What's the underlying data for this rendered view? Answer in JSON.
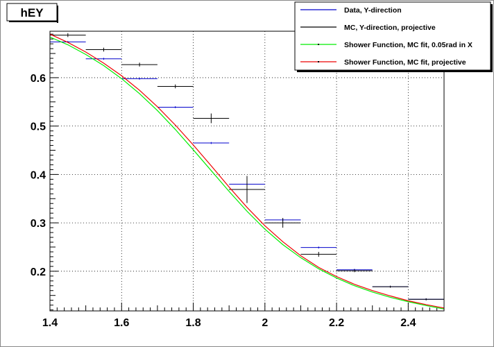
{
  "chart_data": {
    "type": "line",
    "title": "hEY",
    "xlabel": "",
    "ylabel": "",
    "xlim": [
      1.4,
      2.5
    ],
    "ylim": [
      0.118,
      0.696
    ],
    "grid": true,
    "legend_position": "top-right",
    "x_ticks": [
      "1.4",
      "1.6",
      "1.8",
      "2",
      "2.2",
      "2.4"
    ],
    "x_tick_values": [
      1.4,
      1.6,
      1.8,
      2.0,
      2.2,
      2.4
    ],
    "y_ticks": [
      "0.2",
      "0.3",
      "0.4",
      "0.5",
      "0.6"
    ],
    "y_tick_values": [
      0.2,
      0.3,
      0.4,
      0.5,
      0.6
    ],
    "series": [
      {
        "name": "Data, Y-direction",
        "color": "#0000cc",
        "style": "histogram-points",
        "x": [
          1.45,
          1.55,
          1.65,
          1.75,
          1.85,
          1.95,
          2.05,
          2.15,
          2.25,
          2.35,
          2.45
        ],
        "xerr": 0.05,
        "y": [
          0.674,
          0.639,
          0.598,
          0.539,
          0.465,
          0.38,
          0.306,
          0.249,
          0.203,
          0.168,
          0.142
        ],
        "yerr": [
          0.002,
          0.002,
          0.002,
          0.002,
          0.002,
          0.003,
          0.003,
          0.002,
          0.002,
          0.002,
          0.002
        ]
      },
      {
        "name": "MC, Y-direction, projective",
        "color": "#000000",
        "style": "histogram-points",
        "x": [
          1.45,
          1.55,
          1.65,
          1.75,
          1.85,
          1.95,
          2.05,
          2.15,
          2.25,
          2.35,
          2.45
        ],
        "xerr": 0.05,
        "y": [
          0.688,
          0.658,
          0.627,
          0.582,
          0.516,
          0.369,
          0.3,
          0.235,
          0.201,
          0.168,
          0.142
        ],
        "yerr": [
          0.004,
          0.004,
          0.004,
          0.004,
          0.01,
          0.028,
          0.01,
          0.005,
          0.003,
          0.002,
          0.002
        ]
      },
      {
        "name": "Shower Function, MC fit, 0.05rad in X",
        "color": "#00ee00",
        "style": "line",
        "x": [
          1.4,
          1.45,
          1.5,
          1.55,
          1.6,
          1.65,
          1.7,
          1.75,
          1.8,
          1.85,
          1.9,
          1.95,
          2.0,
          2.05,
          2.1,
          2.15,
          2.2,
          2.25,
          2.3,
          2.35,
          2.4,
          2.45,
          2.5
        ],
        "y": [
          0.684,
          0.668,
          0.648,
          0.625,
          0.598,
          0.567,
          0.532,
          0.493,
          0.451,
          0.408,
          0.365,
          0.324,
          0.287,
          0.255,
          0.228,
          0.205,
          0.186,
          0.17,
          0.157,
          0.146,
          0.137,
          0.129,
          0.122
        ]
      },
      {
        "name": "Shower Function, MC fit, projective",
        "color": "#ee0000",
        "style": "line",
        "x": [
          1.4,
          1.45,
          1.5,
          1.55,
          1.6,
          1.65,
          1.7,
          1.75,
          1.8,
          1.85,
          1.9,
          1.95,
          2.0,
          2.05,
          2.1,
          2.15,
          2.2,
          2.25,
          2.3,
          2.35,
          2.4,
          2.45,
          2.5
        ],
        "y": [
          0.69,
          0.673,
          0.653,
          0.63,
          0.604,
          0.574,
          0.54,
          0.502,
          0.461,
          0.418,
          0.374,
          0.332,
          0.294,
          0.261,
          0.232,
          0.208,
          0.189,
          0.173,
          0.16,
          0.149,
          0.139,
          0.131,
          0.124
        ]
      }
    ]
  }
}
